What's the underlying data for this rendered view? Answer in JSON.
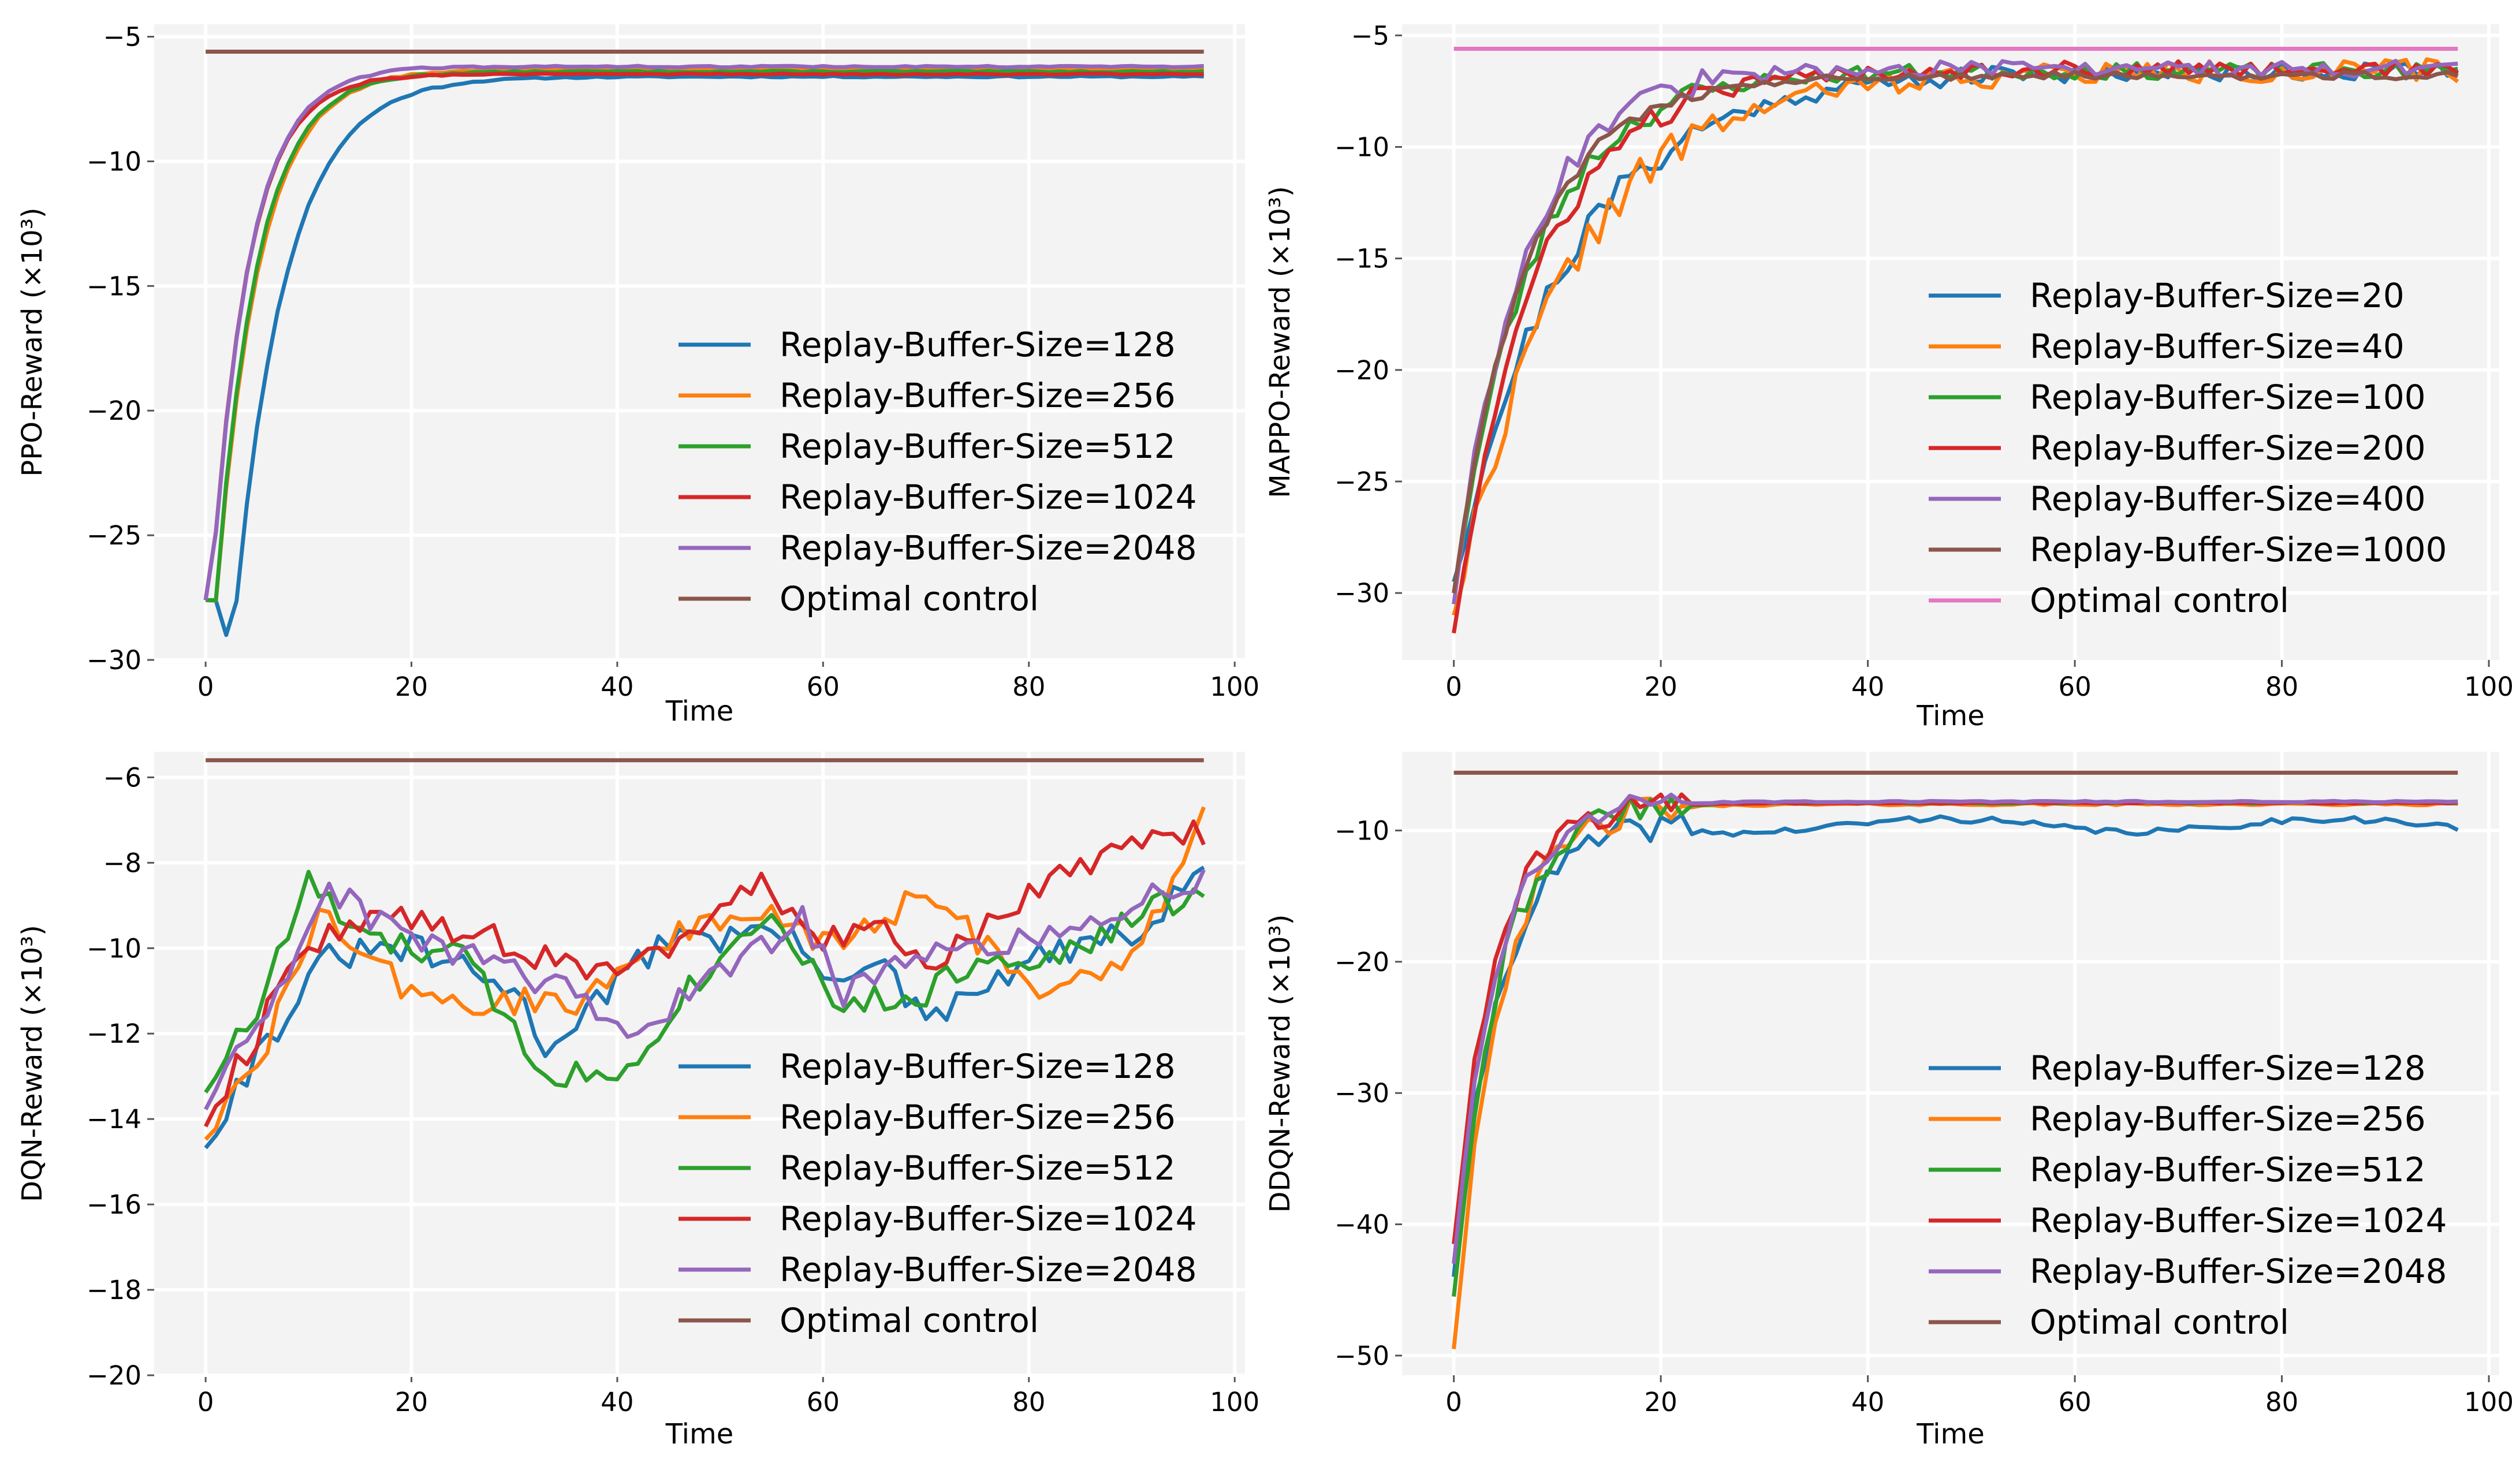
{
  "chart_data": [
    {
      "id": "ppo",
      "type": "line",
      "ylabel": "PPO-Reward (×10³)",
      "xlabel": "Time",
      "xlim": [
        -5,
        101
      ],
      "ylim": [
        -30,
        -4.5
      ],
      "xticks": [
        0,
        20,
        40,
        60,
        80,
        100
      ],
      "yticks": [
        -5,
        -10,
        -15,
        -20,
        -25,
        -30
      ],
      "xtick_labels": [
        "0",
        "20",
        "40",
        "60",
        "80",
        "100"
      ],
      "ytick_labels": [
        "−5",
        "−10",
        "−15",
        "−20",
        "−25",
        "−30"
      ],
      "optimal": -5.6,
      "optimal_label": "Optimal control",
      "optimal_color": "#8c564b",
      "series": [
        {
          "name": "Replay-Buffer-Size=128",
          "color": "#1f77b4",
          "kind": "sat",
          "start": -27.6,
          "end": -6.6,
          "tau": 5.0,
          "delay": 3,
          "noise": 0.05,
          "dip": -29.0,
          "seed": 11
        },
        {
          "name": "Replay-Buffer-Size=256",
          "color": "#ff7f0e",
          "kind": "sat",
          "start": -27.6,
          "end": -6.3,
          "tau": 4.2,
          "delay": 1,
          "noise": 0.05,
          "seed": 12
        },
        {
          "name": "Replay-Buffer-Size=512",
          "color": "#2ca02c",
          "kind": "sat",
          "start": -27.6,
          "end": -6.4,
          "tau": 4.0,
          "delay": 1,
          "noise": 0.05,
          "seed": 13
        },
        {
          "name": "Replay-Buffer-Size=1024",
          "color": "#d62728",
          "kind": "sat",
          "start": -27.6,
          "end": -6.5,
          "tau": 3.6,
          "delay": 0.5,
          "noise": 0.05,
          "seed": 14
        },
        {
          "name": "Replay-Buffer-Size=2048",
          "color": "#9467bd",
          "kind": "sat",
          "start": -27.6,
          "end": -6.2,
          "tau": 3.7,
          "delay": 0.5,
          "noise": 0.05,
          "seed": 15
        }
      ]
    },
    {
      "id": "mappo",
      "type": "line",
      "ylabel": "MAPPO-Reward (×10³)",
      "xlabel": "Time",
      "xlim": [
        -5,
        101
      ],
      "ylim": [
        -33,
        -4.5
      ],
      "xticks": [
        0,
        20,
        40,
        60,
        80,
        100
      ],
      "yticks": [
        -5,
        -10,
        -15,
        -20,
        -25,
        -30
      ],
      "xtick_labels": [
        "0",
        "20",
        "40",
        "60",
        "80",
        "100"
      ],
      "ytick_labels": [
        "−5",
        "−10",
        "−15",
        "−20",
        "−25",
        "−30"
      ],
      "optimal": -5.6,
      "optimal_label": "Optimal control",
      "optimal_color": "#e377c2",
      "series": [
        {
          "name": "Replay-Buffer-Size=20",
          "color": "#1f77b4",
          "kind": "sat",
          "start": -29.5,
          "end": -6.6,
          "tau": 11,
          "delay": 0,
          "noise": 0.7,
          "seed": 21
        },
        {
          "name": "Replay-Buffer-Size=40",
          "color": "#ff7f0e",
          "kind": "sat",
          "start": -31.0,
          "end": -6.6,
          "tau": 11,
          "delay": 0,
          "noise": 0.9,
          "seed": 22
        },
        {
          "name": "Replay-Buffer-Size=100",
          "color": "#2ca02c",
          "kind": "sat",
          "start": -30.0,
          "end": -6.6,
          "tau": 7.5,
          "delay": 0,
          "noise": 0.6,
          "seed": 23
        },
        {
          "name": "Replay-Buffer-Size=200",
          "color": "#d62728",
          "kind": "sat",
          "start": -31.8,
          "end": -6.5,
          "tau": 8,
          "delay": 0,
          "noise": 0.6,
          "seed": 24
        },
        {
          "name": "Replay-Buffer-Size=400",
          "color": "#9467bd",
          "kind": "sat",
          "start": -30.5,
          "end": -6.5,
          "tau": 6.5,
          "delay": 0,
          "noise": 0.6,
          "seed": 25
        },
        {
          "name": "Replay-Buffer-Size=1000",
          "color": "#8c564b",
          "kind": "sat",
          "start": -30.0,
          "end": -6.8,
          "tau": 7,
          "delay": 0,
          "noise": 0.3,
          "seed": 26
        }
      ]
    },
    {
      "id": "dqn",
      "type": "line",
      "ylabel": "DQN-Reward (×10³)",
      "xlabel": "Time",
      "xlim": [
        -5,
        101
      ],
      "ylim": [
        -20,
        -5.4
      ],
      "xticks": [
        0,
        20,
        40,
        60,
        80,
        100
      ],
      "yticks": [
        -6,
        -8,
        -10,
        -12,
        -14,
        -16,
        -18,
        -20
      ],
      "xtick_labels": [
        "0",
        "20",
        "40",
        "60",
        "80",
        "100"
      ],
      "ytick_labels": [
        "−6",
        "−8",
        "−10",
        "−12",
        "−14",
        "−16",
        "−18",
        "−20"
      ],
      "optimal": -5.6,
      "optimal_label": "Optimal control",
      "optimal_color": "#8c564b",
      "series": [
        {
          "name": "Replay-Buffer-Size=128",
          "color": "#1f77b4",
          "kind": "wave",
          "keys": [
            [
              0,
              -14.5
            ],
            [
              5,
              -12.5
            ],
            [
              12,
              -10.2
            ],
            [
              20,
              -10.0
            ],
            [
              30,
              -11.0
            ],
            [
              33,
              -12.3
            ],
            [
              40,
              -10.8
            ],
            [
              46,
              -9.5
            ],
            [
              50,
              -9.8
            ],
            [
              55,
              -9.5
            ],
            [
              60,
              -10.5
            ],
            [
              66,
              -10.5
            ],
            [
              70,
              -11.8
            ],
            [
              80,
              -10.3
            ],
            [
              88,
              -9.8
            ],
            [
              92,
              -9.5
            ],
            [
              97,
              -8.0
            ]
          ],
          "noise": 0.35,
          "seed": 31
        },
        {
          "name": "Replay-Buffer-Size=256",
          "color": "#ff7f0e",
          "kind": "wave",
          "keys": [
            [
              0,
              -14.3
            ],
            [
              5,
              -12.8
            ],
            [
              11,
              -9.2
            ],
            [
              17,
              -10.5
            ],
            [
              22,
              -11.3
            ],
            [
              30,
              -11.3
            ],
            [
              36,
              -11.2
            ],
            [
              40,
              -10.6
            ],
            [
              46,
              -9.6
            ],
            [
              55,
              -9.2
            ],
            [
              60,
              -9.9
            ],
            [
              65,
              -9.5
            ],
            [
              70,
              -8.7
            ],
            [
              75,
              -9.8
            ],
            [
              82,
              -11.0
            ],
            [
              90,
              -10.2
            ],
            [
              97,
              -7.0
            ]
          ],
          "noise": 0.35,
          "seed": 32
        },
        {
          "name": "Replay-Buffer-Size=512",
          "color": "#2ca02c",
          "kind": "wave",
          "keys": [
            [
              0,
              -13.2
            ],
            [
              5,
              -11.5
            ],
            [
              10,
              -8.4
            ],
            [
              15,
              -9.8
            ],
            [
              25,
              -10.2
            ],
            [
              33,
              -12.9
            ],
            [
              40,
              -13.0
            ],
            [
              46,
              -11.2
            ],
            [
              55,
              -9.0
            ],
            [
              61,
              -11.2
            ],
            [
              68,
              -11.3
            ],
            [
              76,
              -10.2
            ],
            [
              85,
              -10.1
            ],
            [
              92,
              -9.0
            ],
            [
              97,
              -8.8
            ]
          ],
          "noise": 0.35,
          "seed": 33
        },
        {
          "name": "Replay-Buffer-Size=1024",
          "color": "#d62728",
          "kind": "wave",
          "keys": [
            [
              0,
              -14.0
            ],
            [
              5,
              -12.0
            ],
            [
              10,
              -9.8
            ],
            [
              20,
              -9.2
            ],
            [
              28,
              -9.8
            ],
            [
              35,
              -10.5
            ],
            [
              42,
              -10.3
            ],
            [
              48,
              -9.6
            ],
            [
              53,
              -8.4
            ],
            [
              60,
              -9.8
            ],
            [
              65,
              -9.5
            ],
            [
              70,
              -10.6
            ],
            [
              78,
              -9.0
            ],
            [
              85,
              -8.0
            ],
            [
              92,
              -7.5
            ],
            [
              97,
              -7.3
            ]
          ],
          "noise": 0.35,
          "seed": 34
        },
        {
          "name": "Replay-Buffer-Size=2048",
          "color": "#9467bd",
          "kind": "wave",
          "keys": [
            [
              0,
              -13.6
            ],
            [
              5,
              -12.0
            ],
            [
              12,
              -8.7
            ],
            [
              20,
              -9.8
            ],
            [
              28,
              -10.4
            ],
            [
              35,
              -11.0
            ],
            [
              40,
              -12.0
            ],
            [
              46,
              -11.3
            ],
            [
              52,
              -10.3
            ],
            [
              58,
              -9.2
            ],
            [
              62,
              -11.1
            ],
            [
              68,
              -10.3
            ],
            [
              75,
              -10.0
            ],
            [
              85,
              -9.6
            ],
            [
              92,
              -8.8
            ],
            [
              97,
              -8.3
            ]
          ],
          "noise": 0.35,
          "seed": 35
        }
      ]
    },
    {
      "id": "ddqn",
      "type": "line",
      "ylabel": "DDQN-Reward (×10³)",
      "xlabel": "Time",
      "xlim": [
        -5,
        101
      ],
      "ylim": [
        -51.5,
        -4
      ],
      "xticks": [
        0,
        20,
        40,
        60,
        80,
        100
      ],
      "yticks": [
        -10,
        -20,
        -30,
        -40,
        -50
      ],
      "xtick_labels": [
        "0",
        "20",
        "40",
        "60",
        "80",
        "100"
      ],
      "ytick_labels": [
        "−10",
        "−20",
        "−30",
        "−40",
        "−50"
      ],
      "optimal": -5.6,
      "optimal_label": "Optimal control",
      "optimal_color": "#8c564b",
      "series": [
        {
          "name": "Replay-Buffer-Size=128",
          "color": "#1f77b4",
          "kind": "sat_then",
          "start": -44.0,
          "end": -9.3,
          "tau": 4.5,
          "delay": 0,
          "noise": 1.0,
          "tail_noise": 0.25,
          "settle": 22,
          "seed": 41
        },
        {
          "name": "Replay-Buffer-Size=256",
          "color": "#ff7f0e",
          "kind": "sat_then",
          "start": -49.5,
          "end": -8.0,
          "tau": 4.3,
          "delay": 0,
          "noise": 1.2,
          "tail_noise": 0.08,
          "settle": 22,
          "seed": 42
        },
        {
          "name": "Replay-Buffer-Size=512",
          "color": "#2ca02c",
          "kind": "sat_then",
          "start": -45.5,
          "end": -7.9,
          "tau": 4.2,
          "delay": 0,
          "noise": 1.2,
          "tail_noise": 0.05,
          "settle": 22,
          "seed": 43
        },
        {
          "name": "Replay-Buffer-Size=1024",
          "color": "#d62728",
          "kind": "sat_then",
          "start": -41.5,
          "end": -7.9,
          "tau": 4.0,
          "delay": 0,
          "noise": 1.0,
          "tail_noise": 0.05,
          "settle": 22,
          "seed": 44
        },
        {
          "name": "Replay-Buffer-Size=2048",
          "color": "#9467bd",
          "kind": "sat_then",
          "start": -43.0,
          "end": -7.8,
          "tau": 4.1,
          "delay": 0,
          "noise": 1.0,
          "tail_noise": 0.05,
          "settle": 22,
          "seed": 45
        }
      ]
    }
  ]
}
